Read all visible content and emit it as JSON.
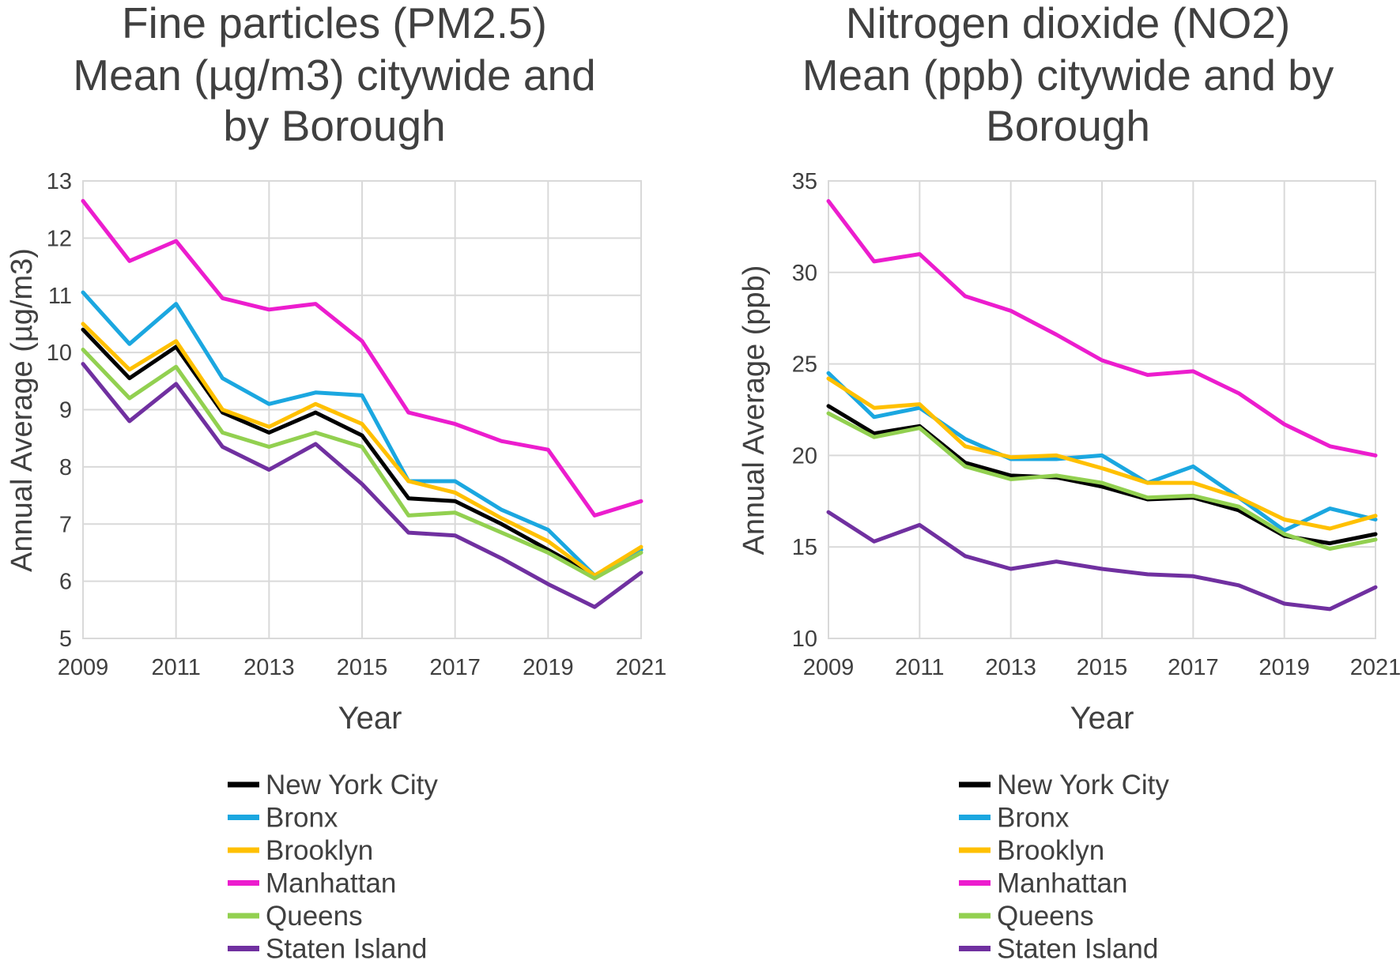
{
  "chart_data": [
    {
      "type": "line",
      "title": [
        "Fine particles (PM2.5)",
        "Mean (µg/m3) citywide and",
        "by Borough"
      ],
      "xlabel": "Year",
      "ylabel": "Annual Average (µg/m3)",
      "x": [
        2009,
        2010,
        2011,
        2012,
        2013,
        2014,
        2015,
        2016,
        2017,
        2018,
        2019,
        2020,
        2021
      ],
      "x_ticks": [
        "2009",
        "2011",
        "2013",
        "2015",
        "2017",
        "2019",
        "2021"
      ],
      "x_tick_values": [
        2009,
        2011,
        2013,
        2015,
        2017,
        2019,
        2021
      ],
      "xlim": [
        2009,
        2021
      ],
      "ylim": [
        5,
        13
      ],
      "y_ticks": [
        5,
        6,
        7,
        8,
        9,
        10,
        11,
        12,
        13
      ],
      "grid": true,
      "legend_position": "bottom",
      "series": [
        {
          "name": "New York City",
          "color": "#000000",
          "values": [
            10.4,
            9.55,
            10.1,
            8.95,
            8.6,
            8.95,
            8.55,
            7.45,
            7.4,
            7.0,
            6.55,
            6.1,
            6.55
          ]
        },
        {
          "name": "Bronx",
          "color": "#1ba7e0",
          "values": [
            11.05,
            10.15,
            10.85,
            9.55,
            9.1,
            9.3,
            9.25,
            7.75,
            7.75,
            7.25,
            6.9,
            6.1,
            6.55
          ]
        },
        {
          "name": "Brooklyn",
          "color": "#ffc000",
          "values": [
            10.5,
            9.7,
            10.2,
            9.0,
            8.7,
            9.1,
            8.75,
            7.75,
            7.55,
            7.1,
            6.7,
            6.1,
            6.6
          ]
        },
        {
          "name": "Manhattan",
          "color": "#ec1dce",
          "values": [
            12.65,
            11.6,
            11.95,
            10.95,
            10.75,
            10.85,
            10.2,
            8.95,
            8.75,
            8.45,
            8.3,
            7.15,
            7.4
          ]
        },
        {
          "name": "Queens",
          "color": "#92d050",
          "values": [
            10.05,
            9.2,
            9.75,
            8.6,
            8.35,
            8.6,
            8.35,
            7.15,
            7.2,
            6.85,
            6.5,
            6.05,
            6.5
          ]
        },
        {
          "name": "Staten Island",
          "color": "#7030a0",
          "values": [
            9.8,
            8.8,
            9.45,
            8.35,
            7.95,
            8.4,
            7.7,
            6.85,
            6.8,
            6.4,
            5.95,
            5.55,
            6.15
          ]
        }
      ]
    },
    {
      "type": "line",
      "title": [
        "Nitrogen dioxide (NO2)",
        "Mean (ppb) citywide and by",
        "Borough"
      ],
      "xlabel": "Year",
      "ylabel": "Annual Average (ppb)",
      "x": [
        2009,
        2010,
        2011,
        2012,
        2013,
        2014,
        2015,
        2016,
        2017,
        2018,
        2019,
        2020,
        2021
      ],
      "x_ticks": [
        "2009",
        "2011",
        "2013",
        "2015",
        "2017",
        "2019",
        "2021"
      ],
      "x_tick_values": [
        2009,
        2011,
        2013,
        2015,
        2017,
        2019,
        2021
      ],
      "xlim": [
        2009,
        2021
      ],
      "ylim": [
        10,
        35
      ],
      "y_ticks": [
        10,
        15,
        20,
        25,
        30,
        35
      ],
      "grid": true,
      "legend_position": "bottom",
      "series": [
        {
          "name": "New York City",
          "color": "#000000",
          "values": [
            22.7,
            21.2,
            21.6,
            19.6,
            18.9,
            18.8,
            18.3,
            17.6,
            17.7,
            17.0,
            15.6,
            15.2,
            15.7
          ]
        },
        {
          "name": "Bronx",
          "color": "#1ba7e0",
          "values": [
            24.5,
            22.1,
            22.6,
            20.9,
            19.8,
            19.8,
            20.0,
            18.5,
            19.4,
            17.7,
            15.9,
            17.1,
            16.5
          ]
        },
        {
          "name": "Brooklyn",
          "color": "#ffc000",
          "values": [
            24.2,
            22.6,
            22.8,
            20.5,
            19.9,
            20.0,
            19.3,
            18.5,
            18.5,
            17.7,
            16.5,
            16.0,
            16.7
          ]
        },
        {
          "name": "Manhattan",
          "color": "#ec1dce",
          "values": [
            33.9,
            30.6,
            31.0,
            28.7,
            27.9,
            26.6,
            25.2,
            24.4,
            24.6,
            23.4,
            21.7,
            20.5,
            20.0
          ]
        },
        {
          "name": "Queens",
          "color": "#92d050",
          "values": [
            22.3,
            21.0,
            21.5,
            19.4,
            18.7,
            18.9,
            18.5,
            17.7,
            17.8,
            17.2,
            15.7,
            14.9,
            15.4
          ]
        },
        {
          "name": "Staten Island",
          "color": "#7030a0",
          "values": [
            16.9,
            15.3,
            16.2,
            14.5,
            13.8,
            14.2,
            13.8,
            13.5,
            13.4,
            12.9,
            11.9,
            11.6,
            12.8
          ]
        }
      ]
    }
  ]
}
